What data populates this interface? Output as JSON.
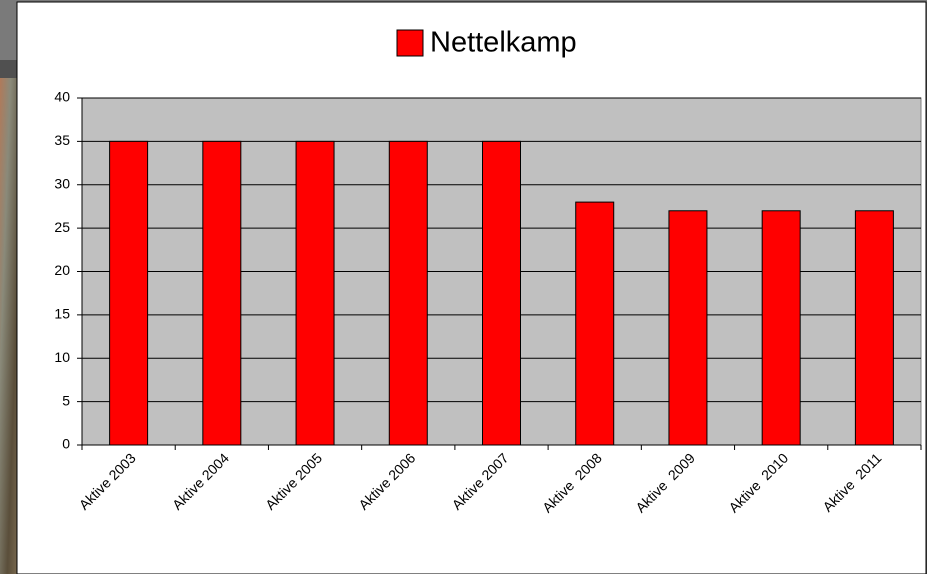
{
  "chart_data": {
    "type": "bar",
    "categories": [
      "Aktive 2003",
      "Aktive 2004",
      "Aktive 2005",
      "Aktive 2006",
      "Aktive 2007",
      "Aktive  2008",
      "Aktive  2009",
      "Aktive  2010",
      "Aktive  2011"
    ],
    "series": [
      {
        "name": "Nettelkamp",
        "color": "#ff0000",
        "values": [
          35,
          35,
          35,
          35,
          35,
          28,
          27,
          27,
          27
        ]
      }
    ],
    "ylim": [
      0,
      40
    ],
    "yticks": [
      0,
      5,
      10,
      15,
      20,
      25,
      30,
      35,
      40
    ],
    "grid": true
  }
}
